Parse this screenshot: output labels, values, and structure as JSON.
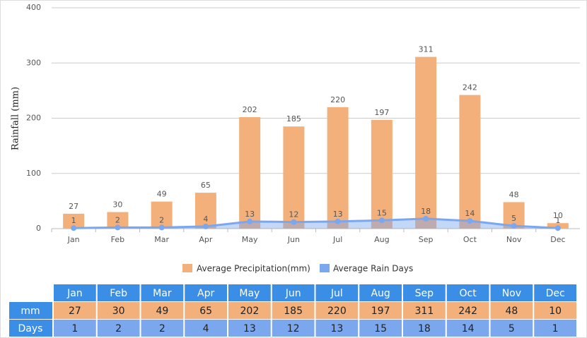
{
  "chart_data": {
    "type": "bar",
    "ylabel": "Rainfall (mm)",
    "categories": [
      "Jan",
      "Feb",
      "Mar",
      "Apr",
      "May",
      "Jun",
      "Jul",
      "Aug",
      "Sep",
      "Oct",
      "Nov",
      "Dec"
    ],
    "series": [
      {
        "name": "Average Precipitation(mm)",
        "type": "bar",
        "color": "#f4b07a",
        "values": [
          27,
          30,
          49,
          65,
          202,
          185,
          220,
          197,
          311,
          242,
          48,
          10
        ]
      },
      {
        "name": "Average Rain Days",
        "type": "area",
        "color": "#7ba7ef",
        "values": [
          1,
          2,
          2,
          4,
          13,
          12,
          13,
          15,
          18,
          14,
          5,
          1
        ]
      }
    ],
    "ylim": [
      0,
      400
    ],
    "yticks": [
      0,
      100,
      200,
      300,
      400
    ],
    "grid": true,
    "legend": "bottom"
  },
  "table": {
    "row_labels": [
      "mm",
      "Days"
    ]
  }
}
